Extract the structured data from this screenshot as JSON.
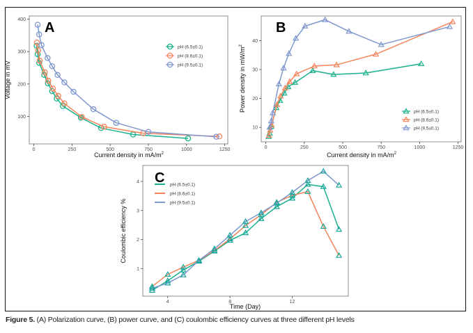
{
  "caption": {
    "label": "Figure 5.",
    "text": " (A) Polarization curve, (B) power curve, and (C) coulombic efficiency curves at three different pH levels"
  },
  "colors": {
    "ph65": "#19b08c",
    "ph86": "#f5845a",
    "ph95": "#7e97cf",
    "markerC": "#17a59a"
  },
  "chart_data": [
    {
      "id": "A",
      "panel_label": "A",
      "type": "line",
      "marker": "circle",
      "title": "",
      "xlabel": "Current density in mA/m",
      "xlabel_sup": "2",
      "ylabel": "Voltage in mV",
      "xlim": [
        -30,
        1270
      ],
      "ylim": [
        15,
        410
      ],
      "xticks": [
        0,
        250,
        500,
        750,
        1000,
        1250
      ],
      "yticks": [
        100,
        200,
        300,
        400
      ],
      "grid": false,
      "legend_position": "top-right",
      "series": [
        {
          "name": "pH (6.5±0.1)",
          "color_key": "ph65",
          "x": [
            18,
            25,
            35,
            68,
            92,
            120,
            150,
            190,
            308,
            440,
            650,
            1010
          ],
          "y": [
            318,
            292,
            265,
            228,
            202,
            178,
            155,
            132,
            96,
            64,
            44,
            32
          ]
        },
        {
          "name": "pH (8.6±0.1)",
          "color_key": "ph86",
          "x": [
            20,
            28,
            38,
            72,
            95,
            125,
            160,
            200,
            315,
            460,
            715,
            1215
          ],
          "y": [
            328,
            304,
            272,
            236,
            210,
            186,
            163,
            140,
            98,
            68,
            48,
            38
          ]
        },
        {
          "name": "pH (9.5±0.1)",
          "color_key": "ph95",
          "x": [
            25,
            35,
            50,
            90,
            120,
            155,
            200,
            260,
            390,
            540,
            750,
            1195
          ],
          "y": [
            383,
            353,
            320,
            280,
            255,
            228,
            205,
            176,
            122,
            80,
            52,
            37
          ]
        }
      ]
    },
    {
      "id": "B",
      "panel_label": "B",
      "type": "line",
      "marker": "triangle",
      "title": "",
      "xlabel": "Current density in mA/m",
      "xlabel_sup": "2",
      "ylabel": "Power density in mW/m",
      "ylabel_sup": "2",
      "xlim": [
        -30,
        1270
      ],
      "ylim": [
        5,
        48.5
      ],
      "xticks": [
        0,
        250,
        500,
        750,
        1000,
        1250
      ],
      "yticks": [
        10,
        20,
        30,
        40
      ],
      "grid": false,
      "legend_position": "bottom-right",
      "series": [
        {
          "name": "pH (6.5±0.1)",
          "color_key": "ph65",
          "x": [
            18,
            25,
            35,
            68,
            92,
            120,
            145,
            190,
            305,
            440,
            650,
            1010
          ],
          "y": [
            6.8,
            8.0,
            10.3,
            16.8,
            19.3,
            21.8,
            24.0,
            25.5,
            29.6,
            28.3,
            28.8,
            32.0
          ]
        },
        {
          "name": "pH (8.6±0.1)",
          "color_key": "ph86",
          "x": [
            20,
            28,
            38,
            72,
            95,
            125,
            155,
            200,
            315,
            460,
            715,
            1215
          ],
          "y": [
            7.2,
            9.0,
            10.8,
            17.8,
            20.8,
            23.6,
            25.8,
            28.5,
            31.2,
            31.6,
            35.3,
            46.5
          ]
        },
        {
          "name": "pH (9.5±0.1)",
          "color_key": "ph95",
          "x": [
            25,
            35,
            45,
            85,
            115,
            150,
            195,
            255,
            385,
            540,
            750,
            1195
          ],
          "y": [
            10.0,
            12.2,
            15.0,
            25.0,
            30.5,
            35.5,
            40.8,
            45.0,
            47.2,
            43.2,
            38.6,
            44.8
          ]
        }
      ]
    },
    {
      "id": "C",
      "panel_label": "C",
      "type": "line",
      "marker": "triangle",
      "title": "",
      "xlabel": "Time (Day)",
      "ylabel": "Coulombic efficiency %",
      "xlim": [
        2.4,
        15.6
      ],
      "ylim": [
        0.05,
        4.55
      ],
      "xticks": [
        4,
        8,
        12
      ],
      "yticks": [
        1,
        2,
        3,
        4
      ],
      "grid": false,
      "legend_position": "top-left",
      "series": [
        {
          "name": "pH (6.5±0.1)",
          "color_key": "ph65",
          "x": [
            3,
            4,
            5,
            6,
            7,
            8,
            9,
            10,
            11,
            12,
            13,
            14,
            15
          ],
          "y": [
            0.25,
            0.58,
            0.95,
            1.25,
            1.6,
            1.97,
            2.23,
            2.72,
            3.13,
            3.42,
            3.9,
            3.82,
            2.35
          ]
        },
        {
          "name": "pH (8.6±0.1)",
          "color_key": "ph86",
          "x": [
            3,
            4,
            5,
            6,
            7,
            8,
            9,
            10,
            11,
            12,
            13,
            14,
            15
          ],
          "y": [
            0.38,
            0.8,
            1.05,
            1.28,
            1.62,
            2.02,
            2.48,
            2.85,
            3.28,
            3.52,
            3.65,
            2.45,
            1.45
          ]
        },
        {
          "name": "pH (9.5±0.1)",
          "color_key": "ph95",
          "x": [
            3,
            4,
            5,
            6,
            7,
            8,
            9,
            10,
            11,
            12,
            13,
            14,
            15
          ],
          "y": [
            0.32,
            0.5,
            0.78,
            1.28,
            1.68,
            2.15,
            2.62,
            2.92,
            3.25,
            3.62,
            4.03,
            4.35,
            3.87
          ]
        }
      ]
    }
  ]
}
